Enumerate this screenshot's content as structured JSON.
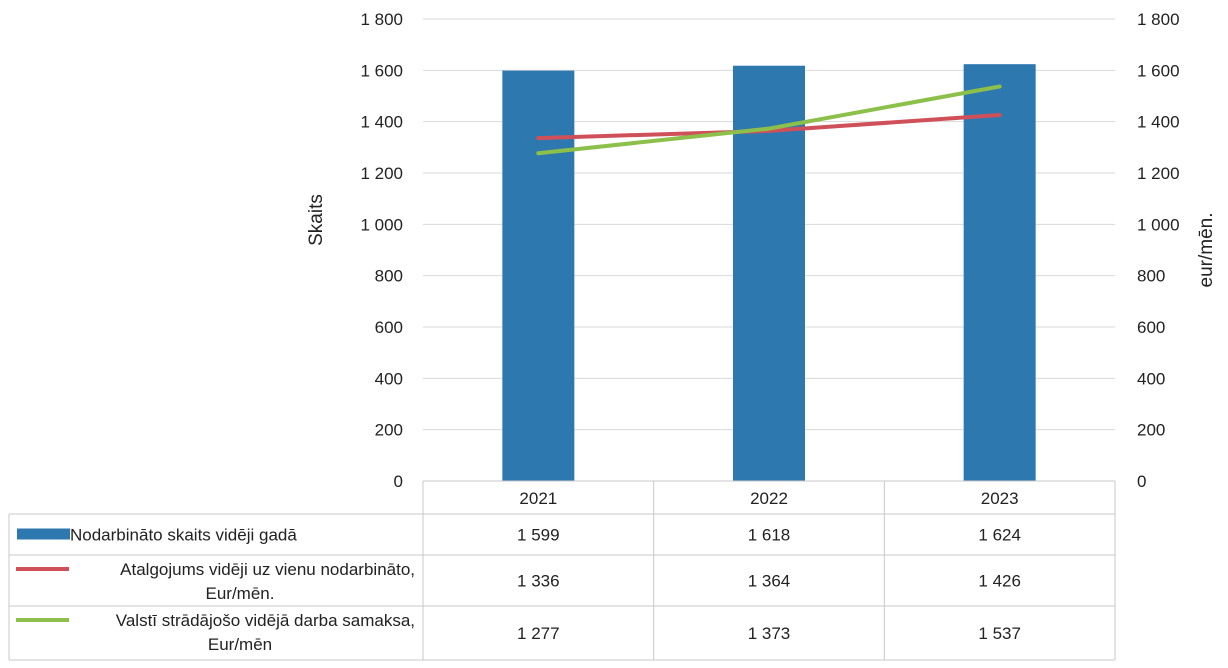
{
  "chart_data": {
    "type": "bar",
    "categories": [
      "2021",
      "2022",
      "2023"
    ],
    "ylabel": "Skaits",
    "y2label": "eur/mēn.",
    "ylim": [
      0,
      1800
    ],
    "y2lim": [
      0,
      1800
    ],
    "yticks": [
      "0",
      "200",
      "400",
      "600",
      "800",
      "1 000",
      "1 200",
      "1 400",
      "1 600",
      "1 800"
    ],
    "y2ticks": [
      "0",
      "200",
      "400",
      "600",
      "800",
      "1 000",
      "1 200",
      "1 400",
      "1 600",
      "1 800"
    ],
    "grid": true,
    "legend": "data-table",
    "series": [
      {
        "name": "Nodarbināto skaits vidēji gadā",
        "kind": "bar",
        "axis": "left",
        "color": "#2e78b0",
        "values": [
          1599,
          1618,
          1624
        ],
        "labels": [
          "1 599",
          "1 618",
          "1 624"
        ]
      },
      {
        "name": "Atalgojums vidēji uz vienu nodarbināto,",
        "name2": "Eur/mēn.",
        "kind": "line",
        "axis": "right",
        "color": "#d0505a",
        "values": [
          1336,
          1364,
          1426
        ],
        "labels": [
          "1 336",
          "1 364",
          "1 426"
        ]
      },
      {
        "name": "Valstī strādājošo vidējā darba samaksa,",
        "name2": "Eur/mēn",
        "kind": "line",
        "axis": "right",
        "color": "#8cc04b",
        "values": [
          1277,
          1373,
          1537
        ],
        "labels": [
          "1 277",
          "1 373",
          "1 537"
        ]
      }
    ]
  }
}
